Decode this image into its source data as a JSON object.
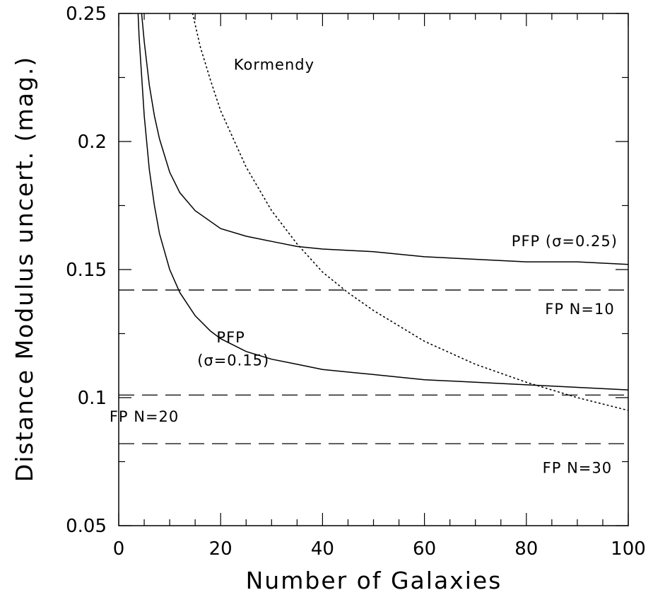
{
  "chart_data": {
    "type": "line",
    "title": "",
    "xlabel": "Number of Galaxies",
    "ylabel": "Distance Modulus uncert. (mag.)",
    "xlim": [
      0,
      100
    ],
    "ylim": [
      0.05,
      0.25
    ],
    "x_ticks": [
      0,
      20,
      40,
      60,
      80,
      100
    ],
    "x_tick_labels": [
      "0",
      "20",
      "40",
      "60",
      "80",
      "100"
    ],
    "y_ticks": [
      0.05,
      0.1,
      0.15,
      0.2,
      0.25
    ],
    "y_tick_labels": [
      "0.05",
      "0.1",
      "0.15",
      "0.2",
      "0.25"
    ],
    "grid": false,
    "series": [
      {
        "style": "solid",
        "x": [
          4.5,
          5,
          6,
          7,
          8,
          10,
          12,
          15,
          20,
          25,
          30,
          35,
          40,
          50,
          60,
          70,
          80,
          90,
          100
        ],
        "y": [
          0.25,
          0.239,
          0.222,
          0.21,
          0.201,
          0.188,
          0.18,
          0.173,
          0.166,
          0.163,
          0.161,
          0.159,
          0.158,
          0.157,
          0.155,
          0.154,
          0.153,
          0.153,
          0.152
        ]
      },
      {
        "style": "solid",
        "x": [
          3.8,
          4,
          5,
          6,
          7,
          8,
          10,
          12,
          15,
          18,
          20,
          25,
          30,
          35,
          40,
          50,
          60,
          70,
          80,
          90,
          100
        ],
        "y": [
          0.25,
          0.241,
          0.21,
          0.189,
          0.175,
          0.164,
          0.15,
          0.141,
          0.132,
          0.126,
          0.123,
          0.118,
          0.115,
          0.113,
          0.111,
          0.109,
          0.107,
          0.106,
          0.105,
          0.104,
          0.103
        ]
      },
      {
        "style": "dotted",
        "x": [
          14.5,
          16,
          18,
          20,
          25,
          30,
          35,
          40,
          45,
          50,
          60,
          70,
          80,
          90,
          100
        ],
        "y": [
          0.25,
          0.237,
          0.224,
          0.212,
          0.19,
          0.173,
          0.16,
          0.149,
          0.141,
          0.134,
          0.122,
          0.113,
          0.106,
          0.1,
          0.095
        ]
      }
    ],
    "reference_lines": [
      {
        "y": 0.142,
        "style": "dashed"
      },
      {
        "y": 0.101,
        "style": "dashed"
      },
      {
        "y": 0.082,
        "style": "dashed"
      }
    ],
    "annotations": [
      {
        "text": "Kormendy",
        "x": 30.5,
        "y": 0.23
      },
      {
        "text": "PFP (σ=0.25)",
        "x": 87.5,
        "y": 0.161
      },
      {
        "text": "FP N=10",
        "x": 90.5,
        "y": 0.1345
      },
      {
        "text": "PFP",
        "x": 22,
        "y": 0.1235
      },
      {
        "text": "(σ=0.15)",
        "x": 22.5,
        "y": 0.1145
      },
      {
        "text": "FP N=20",
        "x": 5,
        "y": 0.0925
      },
      {
        "text": "FP N=30",
        "x": 90,
        "y": 0.0725
      }
    ]
  }
}
